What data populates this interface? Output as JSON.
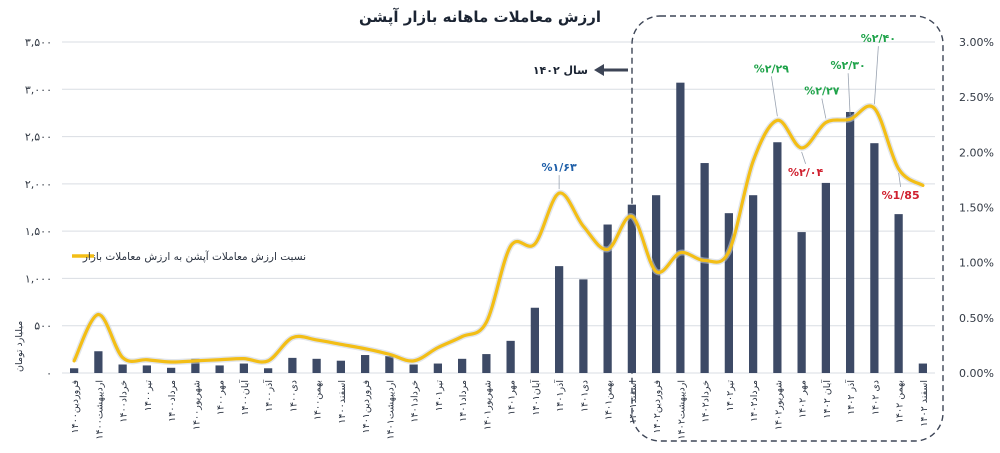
{
  "chart_data": {
    "type": "bar",
    "title": "ارزش معاملات ماهانه بازار آپشن",
    "ylabel": "میلیارد تومان",
    "ylim": [
      0,
      3500
    ],
    "ylim_right": [
      0,
      3.0
    ],
    "left_ticks": [
      "۳,۵۰۰",
      "۳,۰۰۰",
      "۲,۵۰۰",
      "۲,۰۰۰",
      "۱,۵۰۰",
      "۱,۰۰۰",
      "۵۰۰",
      "۰"
    ],
    "right_ticks": [
      "3.00%",
      "2.50%",
      "2.00%",
      "1.50%",
      "1.00%",
      "0.50%",
      "0.00%"
    ],
    "grid": true,
    "bar_color": "#3d4a66",
    "line_color": "#f3be16",
    "categories": [
      "فروردین۱۴۰۰",
      "اردیبهشت۱۴۰۰",
      "خرداد۱۴۰۰",
      "تیر۱۴۰۰",
      "مرداد۱۴۰۰",
      "شهریور۱۴۰۰",
      "مهر۱۴۰۰",
      "آبان۱۴۰۰",
      "آذر۱۴۰۰",
      "دی۱۴۰۰",
      "بهمن۱۴۰۰",
      "اسفند۱۴۰۰",
      "فروردین۱۴۰۱",
      "اردیبهشت۱۴۰۱",
      "خرداد۱۴۰۱",
      "تیر۱۴۰۱",
      "مرداد۱۴۰۱",
      "شهریور۱۴۰۱",
      "مهر۱۴۰۱",
      "آبان۱۴۰۱",
      "آذر۱۴۰۱",
      "دی۱۴۰۱",
      "بهمن۱۴۰۱",
      "اسفند۱۴۰۱",
      "فروردین۱۴۰۲",
      "اردیبهشت۱۴۰۲",
      "خرداد۱۴۰۲",
      "تیر۱۴۰۲",
      "مرداد۱۴۰۲",
      "شهریور۱۴۰۲",
      "مهر ۱۴۰۲",
      "آبان ۱۴۰۲",
      "آذر ۱۴۰۲",
      "دی ۱۴۰۲",
      "بهمن ۱۴۰۲",
      "اسفند ۱۴۰۲"
    ],
    "series": [
      {
        "type": "bar",
        "axis": "left",
        "values": [
          50,
          230,
          90,
          80,
          55,
          150,
          80,
          100,
          50,
          160,
          150,
          130,
          190,
          180,
          90,
          100,
          150,
          200,
          340,
          690,
          1130,
          990,
          1570,
          1780,
          1880,
          3070,
          2220,
          1690,
          1880,
          2440,
          1490,
          2010,
          2760,
          2430,
          1680,
          100
        ]
      },
      {
        "type": "line",
        "axis": "right",
        "name": "نسبت ارزش معاملات آپشن به ارزش معاملات بازار",
        "values": [
          0.11,
          0.53,
          0.14,
          0.12,
          0.1,
          0.11,
          0.12,
          0.13,
          0.11,
          0.32,
          0.3,
          0.26,
          0.22,
          0.17,
          0.11,
          0.23,
          0.33,
          0.46,
          1.15,
          1.17,
          1.63,
          1.33,
          1.12,
          1.42,
          0.92,
          1.09,
          1.02,
          1.1,
          1.92,
          2.29,
          2.04,
          2.27,
          2.3,
          2.4,
          1.85,
          1.7
        ]
      }
    ],
    "annotations": [
      {
        "label": "%۱/۶۳",
        "index": 20,
        "value": 1.63,
        "color": "#1f5fa8"
      },
      {
        "label": "%۲/۲۹",
        "index": 29,
        "value": 2.29,
        "color": "#1fa34a"
      },
      {
        "label": "%۲/۰۴",
        "index": 30,
        "value": 2.04,
        "color": "#d0202f"
      },
      {
        "label": "%۲/۲۷",
        "index": 31,
        "value": 2.27,
        "color": "#1fa34a"
      },
      {
        "label": "%۲/۳۰",
        "index": 32,
        "value": 2.3,
        "color": "#1fa34a"
      },
      {
        "label": "%۲/۴۰",
        "index": 33,
        "value": 2.4,
        "color": "#1fa34a"
      },
      {
        "label": "%1/85",
        "index": 34,
        "value": 1.85,
        "color": "#d0202f"
      }
    ],
    "legend": {
      "label": "نسبت ارزش معاملات آپشن به ارزش معاملات بازار",
      "position": "middle-right"
    },
    "highlight": {
      "label": "سال ۱۴۰۲",
      "from_index": 24,
      "to_index": 35
    }
  }
}
